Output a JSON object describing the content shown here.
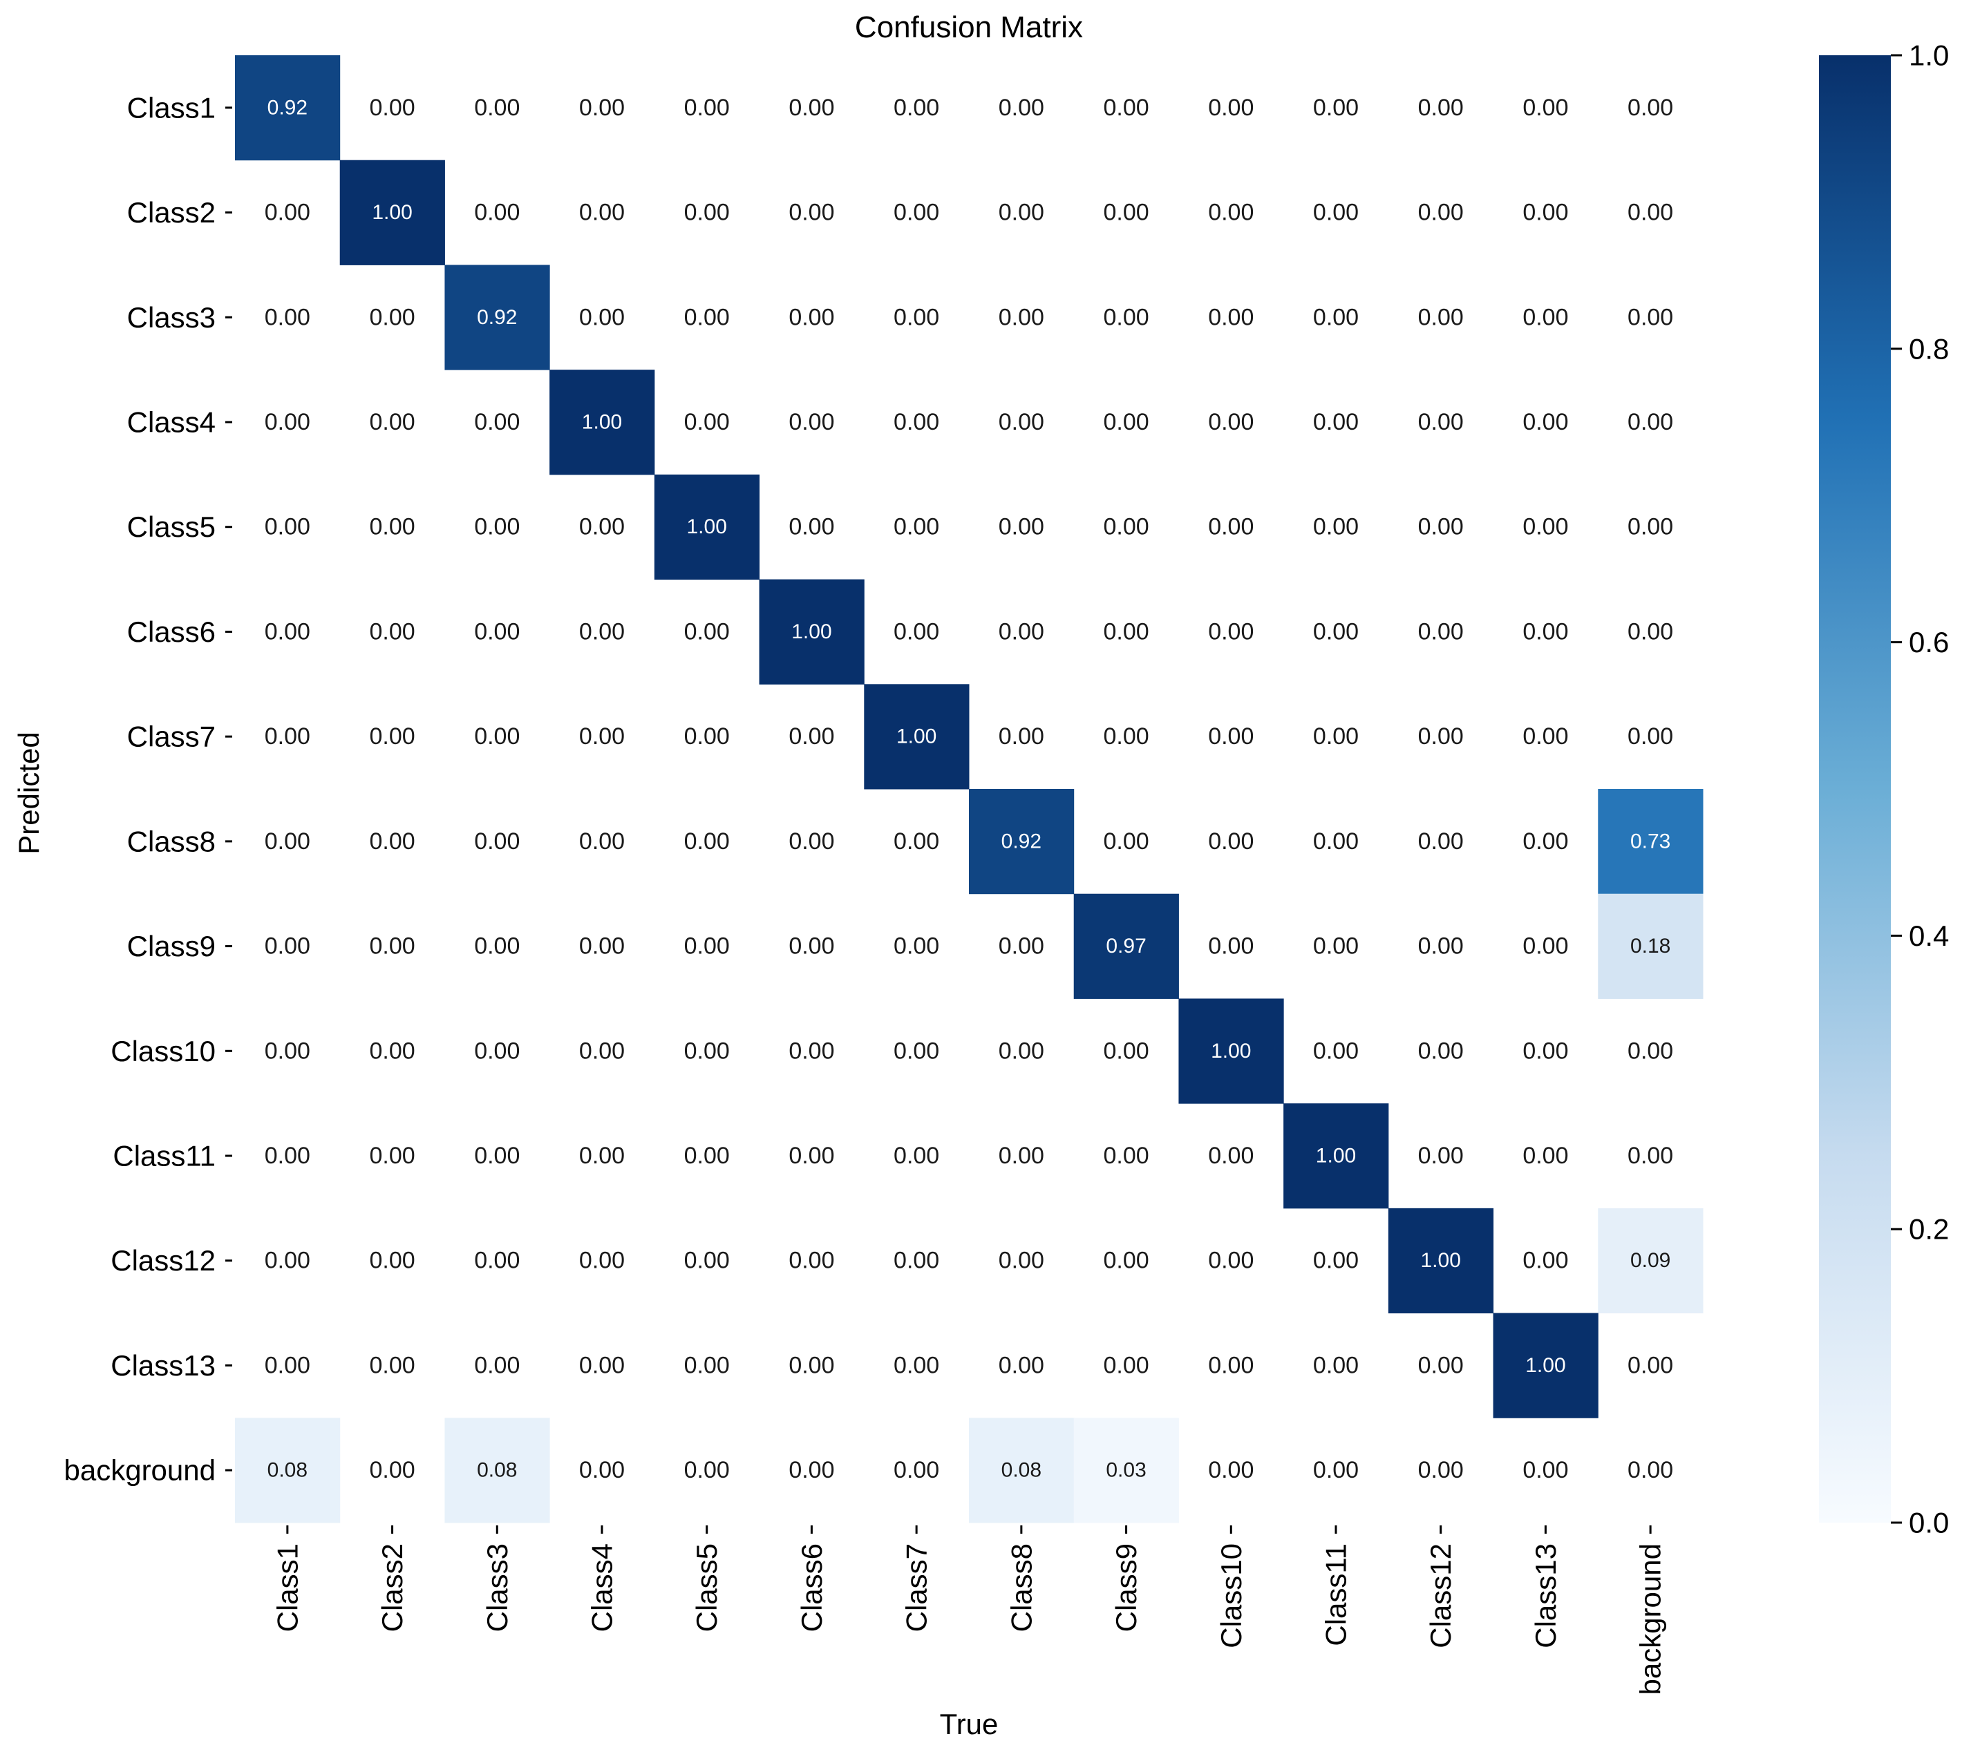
{
  "chart_data": {
    "type": "heatmap",
    "title": "Confusion Matrix",
    "xlabel": "True",
    "ylabel": "Predicted",
    "rows": [
      "Class1",
      "Class2",
      "Class3",
      "Class4",
      "Class5",
      "Class6",
      "Class7",
      "Class8",
      "Class9",
      "Class10",
      "Class11",
      "Class12",
      "Class13",
      "background"
    ],
    "columns": [
      "Class1",
      "Class2",
      "Class3",
      "Class4",
      "Class5",
      "Class6",
      "Class7",
      "Class8",
      "Class9",
      "Class10",
      "Class11",
      "Class12",
      "Class13",
      "background"
    ],
    "values": [
      [
        0.92,
        0.0,
        0.0,
        0.0,
        0.0,
        0.0,
        0.0,
        0.0,
        0.0,
        0.0,
        0.0,
        0.0,
        0.0,
        0.0
      ],
      [
        0.0,
        1.0,
        0.0,
        0.0,
        0.0,
        0.0,
        0.0,
        0.0,
        0.0,
        0.0,
        0.0,
        0.0,
        0.0,
        0.0
      ],
      [
        0.0,
        0.0,
        0.92,
        0.0,
        0.0,
        0.0,
        0.0,
        0.0,
        0.0,
        0.0,
        0.0,
        0.0,
        0.0,
        0.0
      ],
      [
        0.0,
        0.0,
        0.0,
        1.0,
        0.0,
        0.0,
        0.0,
        0.0,
        0.0,
        0.0,
        0.0,
        0.0,
        0.0,
        0.0
      ],
      [
        0.0,
        0.0,
        0.0,
        0.0,
        1.0,
        0.0,
        0.0,
        0.0,
        0.0,
        0.0,
        0.0,
        0.0,
        0.0,
        0.0
      ],
      [
        0.0,
        0.0,
        0.0,
        0.0,
        0.0,
        1.0,
        0.0,
        0.0,
        0.0,
        0.0,
        0.0,
        0.0,
        0.0,
        0.0
      ],
      [
        0.0,
        0.0,
        0.0,
        0.0,
        0.0,
        0.0,
        1.0,
        0.0,
        0.0,
        0.0,
        0.0,
        0.0,
        0.0,
        0.0
      ],
      [
        0.0,
        0.0,
        0.0,
        0.0,
        0.0,
        0.0,
        0.0,
        0.92,
        0.0,
        0.0,
        0.0,
        0.0,
        0.0,
        0.73
      ],
      [
        0.0,
        0.0,
        0.0,
        0.0,
        0.0,
        0.0,
        0.0,
        0.0,
        0.97,
        0.0,
        0.0,
        0.0,
        0.0,
        0.18
      ],
      [
        0.0,
        0.0,
        0.0,
        0.0,
        0.0,
        0.0,
        0.0,
        0.0,
        0.0,
        1.0,
        0.0,
        0.0,
        0.0,
        0.0
      ],
      [
        0.0,
        0.0,
        0.0,
        0.0,
        0.0,
        0.0,
        0.0,
        0.0,
        0.0,
        0.0,
        1.0,
        0.0,
        0.0,
        0.0
      ],
      [
        0.0,
        0.0,
        0.0,
        0.0,
        0.0,
        0.0,
        0.0,
        0.0,
        0.0,
        0.0,
        0.0,
        1.0,
        0.0,
        0.09
      ],
      [
        0.0,
        0.0,
        0.0,
        0.0,
        0.0,
        0.0,
        0.0,
        0.0,
        0.0,
        0.0,
        0.0,
        0.0,
        1.0,
        0.0
      ],
      [
        0.08,
        0.0,
        0.08,
        0.0,
        0.0,
        0.0,
        0.0,
        0.08,
        0.03,
        0.0,
        0.0,
        0.0,
        0.0,
        0.0
      ]
    ],
    "value_format": "2 decimals",
    "colorbar": {
      "range": [
        0.0,
        1.0
      ],
      "ticks": [
        "0.0",
        "0.2",
        "0.4",
        "0.6",
        "0.8",
        "1.0"
      ],
      "colormap": "Blues",
      "colors": [
        "#f7fbff",
        "#c6dbef",
        "#6baed6",
        "#2171b5",
        "#08306b"
      ]
    },
    "grid": false,
    "legend": "colorbar-right"
  }
}
